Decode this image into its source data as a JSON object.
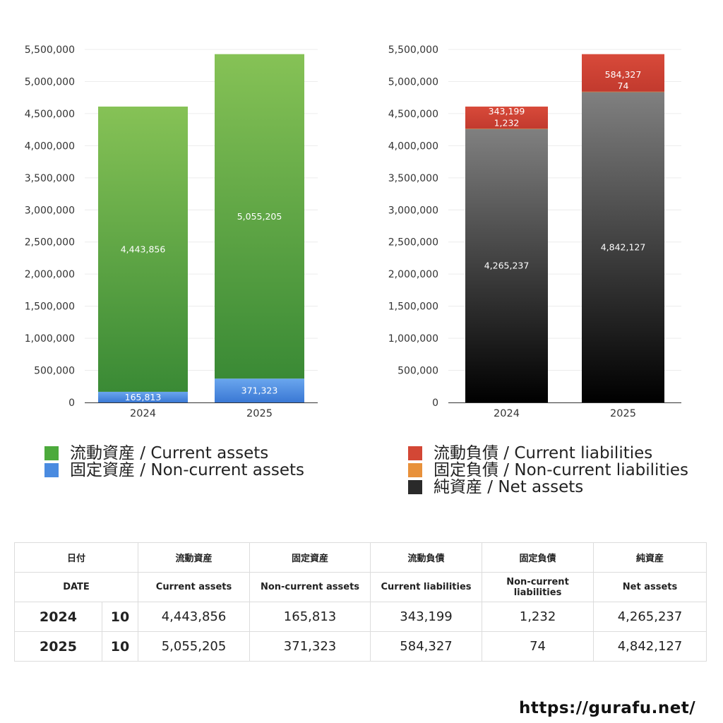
{
  "chart_data": [
    {
      "type": "bar",
      "stacked": true,
      "categories": [
        "2024",
        "2025"
      ],
      "ylim": [
        0,
        5500000
      ],
      "yticks": [
        0,
        500000,
        1000000,
        1500000,
        2000000,
        2500000,
        3000000,
        3500000,
        4000000,
        4500000,
        5000000,
        5500000
      ],
      "ytick_labels": [
        "0",
        "500,000",
        "1,000,000",
        "1,500,000",
        "2,000,000",
        "2,500,000",
        "3,000,000",
        "3,500,000",
        "4,000,000",
        "4,500,000",
        "5,000,000",
        "5,500,000"
      ],
      "grid": true,
      "legend_position": "bottom",
      "series": [
        {
          "name": "固定資産 / Non-current assets",
          "values": [
            165813,
            371323
          ],
          "labels": [
            "165,813",
            "371,323"
          ],
          "color_top": "#6aa6ee",
          "color_bottom": "#3a78d4"
        },
        {
          "name": "流動資産 / Current assets",
          "values": [
            4443856,
            5055205
          ],
          "labels": [
            "4,443,856",
            "5,055,205"
          ],
          "color_top": "#86c256",
          "color_bottom": "#3a8a35"
        }
      ]
    },
    {
      "type": "bar",
      "stacked": true,
      "categories": [
        "2024",
        "2025"
      ],
      "ylim": [
        0,
        5500000
      ],
      "yticks": [
        0,
        500000,
        1000000,
        1500000,
        2000000,
        2500000,
        3000000,
        3500000,
        4000000,
        4500000,
        5000000,
        5500000
      ],
      "ytick_labels": [
        "0",
        "500,000",
        "1,000,000",
        "1,500,000",
        "2,000,000",
        "2,500,000",
        "3,000,000",
        "3,500,000",
        "4,000,000",
        "4,500,000",
        "5,000,000",
        "5,500,000"
      ],
      "grid": true,
      "legend_position": "bottom",
      "series": [
        {
          "name": "純資産 / Net assets",
          "values": [
            4265237,
            4842127
          ],
          "labels": [
            "4,265,237",
            "4,842,127"
          ],
          "color_top": "#808080",
          "color_bottom": "#000000"
        },
        {
          "name": "固定負債 / Non-current liabilities",
          "values": [
            1232,
            74
          ],
          "labels": [
            "1,232",
            "74"
          ],
          "color_top": "#f0a050",
          "color_bottom": "#d8782a"
        },
        {
          "name": "流動負債 / Current liabilities",
          "values": [
            343199,
            584327
          ],
          "labels": [
            "343,199",
            "584,327"
          ],
          "color_top": "#d84a3a",
          "color_bottom": "#c23a2e"
        }
      ]
    }
  ],
  "legend_left": [
    {
      "label": "流動資産 / Current assets",
      "color": "#4caa3c"
    },
    {
      "label": "固定資産 / Non-current assets",
      "color": "#4a8be0"
    }
  ],
  "legend_right": [
    {
      "label": "流動負債 / Current liabilities",
      "color": "#d34735"
    },
    {
      "label": "固定負債 / Non-current liabilities",
      "color": "#e8913b"
    },
    {
      "label": "純資産 / Net assets",
      "color": "#2a2a2a"
    }
  ],
  "table": {
    "header_jp": [
      "日付",
      "流動資産",
      "固定資産",
      "流動負債",
      "固定負債",
      "純資産"
    ],
    "header_en": [
      "DATE",
      "Current assets",
      "Non-current assets",
      "Current liabilities",
      "Non-current liabilities",
      "Net assets"
    ],
    "rows": [
      {
        "year": "2024",
        "month": "10",
        "current_assets": "4,443,856",
        "noncurrent_assets": "165,813",
        "current_liabilities": "343,199",
        "noncurrent_liabilities": "1,232",
        "net_assets": "4,265,237"
      },
      {
        "year": "2025",
        "month": "10",
        "current_assets": "5,055,205",
        "noncurrent_assets": "371,323",
        "current_liabilities": "584,327",
        "noncurrent_liabilities": "74",
        "net_assets": "4,842,127"
      }
    ]
  },
  "site_url": "https://gurafu.net/"
}
